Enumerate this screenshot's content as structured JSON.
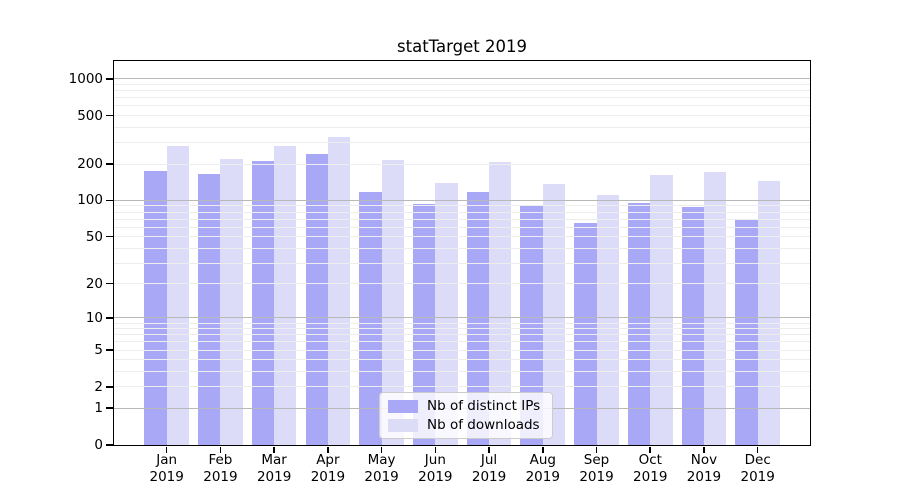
{
  "title": "statTarget 2019",
  "chart_data": {
    "type": "bar",
    "title": "statTarget 2019",
    "categories": [
      "Jan",
      "Feb",
      "Mar",
      "Apr",
      "May",
      "Jun",
      "Jul",
      "Aug",
      "Sep",
      "Oct",
      "Nov",
      "Dec"
    ],
    "category_year": "2019",
    "series": [
      {
        "name": "Nb of distinct IPs",
        "color": "#a8a8f6",
        "fill": "rgba(121,121,241,0.65)",
        "values": [
          175,
          165,
          213,
          240,
          117,
          94,
          117,
          91,
          65,
          96,
          89,
          69
        ]
      },
      {
        "name": "Nb of downloads",
        "color": "#dcdcf7",
        "fill": "rgba(155,155,235,0.35)",
        "values": [
          280,
          222,
          283,
          335,
          215,
          140,
          207,
          138,
          111,
          162,
          173,
          146
        ]
      }
    ],
    "xlabel": "",
    "ylabel": "",
    "y_ticks": [
      0,
      1,
      2,
      5,
      10,
      20,
      50,
      100,
      200,
      500,
      1000
    ],
    "y_scale": "log10(1+v)",
    "ylim": [
      0,
      1400
    ],
    "grid": "on",
    "grid_minor_values": [
      2,
      3,
      4,
      5,
      6,
      7,
      8,
      9,
      20,
      30,
      40,
      50,
      60,
      70,
      80,
      90,
      200,
      300,
      400,
      500,
      600,
      700,
      800,
      900
    ],
    "grid_major_values": [
      1,
      10,
      100,
      1000
    ],
    "grid_minor_color": "#ededed",
    "grid_major_color": "#b9b9b9",
    "legend_position": "bottom-center"
  }
}
